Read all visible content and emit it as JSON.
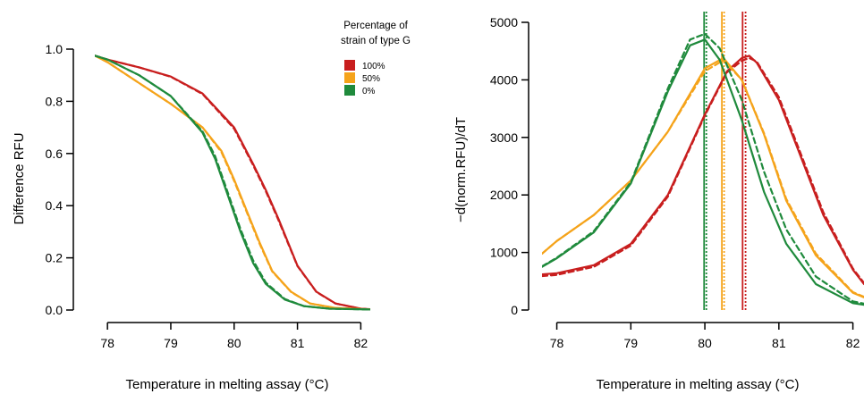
{
  "legend": {
    "title_line1": "Percentage of",
    "title_line2": "strain of type G",
    "items": [
      {
        "label": "100%",
        "color": "#c81e1e"
      },
      {
        "label": "50%",
        "color": "#f5a31a"
      },
      {
        "label": "0%",
        "color": "#1f8a3c"
      }
    ]
  },
  "chart_data": [
    {
      "type": "line",
      "xlabel": "Temperature in melting assay (°C)",
      "ylabel": "Difference RFU",
      "xlim": [
        77.8,
        82.15
      ],
      "ylim": [
        0,
        1.0
      ],
      "xticks": [
        "78",
        "79",
        "80",
        "81",
        "82"
      ],
      "yticks": [
        "0.0",
        "0.2",
        "0.4",
        "0.6",
        "0.8",
        "1.0"
      ],
      "grid": false,
      "series": [
        {
          "name": "100%",
          "color": "#c81e1e",
          "line": "solid",
          "x": [
            77.8,
            78.0,
            78.5,
            79.0,
            79.5,
            80.0,
            80.3,
            80.5,
            80.7,
            81.0,
            81.3,
            81.6,
            82.0,
            82.15
          ],
          "y": [
            0.975,
            0.96,
            0.93,
            0.895,
            0.83,
            0.7,
            0.56,
            0.46,
            0.35,
            0.17,
            0.07,
            0.025,
            0.005,
            0.003
          ]
        },
        {
          "name": "100%",
          "color": "#c81e1e",
          "line": "dashed",
          "x": [
            77.8,
            78.0,
            78.5,
            79.0,
            79.5,
            80.0,
            80.3,
            80.5,
            80.7,
            81.0,
            81.3,
            81.6,
            82.0,
            82.15
          ],
          "y": [
            0.975,
            0.96,
            0.93,
            0.894,
            0.828,
            0.695,
            0.555,
            0.455,
            0.345,
            0.168,
            0.069,
            0.025,
            0.005,
            0.003
          ]
        },
        {
          "name": "50%",
          "color": "#f5a31a",
          "line": "solid",
          "x": [
            77.8,
            78.0,
            78.5,
            79.0,
            79.5,
            79.8,
            80.0,
            80.2,
            80.4,
            80.6,
            80.9,
            81.2,
            81.6,
            82.15
          ],
          "y": [
            0.975,
            0.95,
            0.87,
            0.79,
            0.7,
            0.61,
            0.5,
            0.38,
            0.26,
            0.15,
            0.07,
            0.025,
            0.008,
            0.002
          ]
        },
        {
          "name": "50%",
          "color": "#f5a31a",
          "line": "dashed",
          "x": [
            77.8,
            78.0,
            78.5,
            79.0,
            79.5,
            79.8,
            80.0,
            80.2,
            80.4,
            80.6,
            80.9,
            81.2,
            81.6,
            82.15
          ],
          "y": [
            0.975,
            0.95,
            0.87,
            0.79,
            0.7,
            0.605,
            0.495,
            0.375,
            0.255,
            0.148,
            0.069,
            0.025,
            0.008,
            0.002
          ]
        },
        {
          "name": "0%",
          "color": "#1f8a3c",
          "line": "solid",
          "x": [
            77.8,
            78.0,
            78.5,
            79.0,
            79.5,
            79.7,
            79.9,
            80.1,
            80.3,
            80.5,
            80.8,
            81.1,
            81.5,
            82.15
          ],
          "y": [
            0.975,
            0.96,
            0.9,
            0.82,
            0.68,
            0.58,
            0.44,
            0.3,
            0.18,
            0.1,
            0.04,
            0.015,
            0.005,
            0.002
          ]
        },
        {
          "name": "0%",
          "color": "#1f8a3c",
          "line": "dashed",
          "x": [
            77.8,
            78.0,
            78.5,
            79.0,
            79.5,
            79.7,
            79.9,
            80.1,
            80.3,
            80.5,
            80.8,
            81.1,
            81.5,
            82.15
          ],
          "y": [
            0.975,
            0.96,
            0.9,
            0.82,
            0.685,
            0.59,
            0.45,
            0.31,
            0.19,
            0.105,
            0.042,
            0.015,
            0.005,
            0.002
          ]
        }
      ]
    },
    {
      "type": "line",
      "xlabel": "Temperature in melting assay (°C)",
      "ylabel": "−d(norm.RFU)/dT",
      "xlim": [
        77.8,
        82.15
      ],
      "ylim": [
        0,
        5000
      ],
      "xticks": [
        "78",
        "79",
        "80",
        "81",
        "82"
      ],
      "yticks": [
        "0",
        "1000",
        "2000",
        "3000",
        "4000",
        "5000"
      ],
      "grid": false,
      "series": [
        {
          "name": "100%",
          "color": "#c81e1e",
          "line": "solid",
          "x": [
            77.8,
            78.0,
            78.5,
            79.0,
            79.5,
            80.0,
            80.3,
            80.5,
            80.6,
            80.7,
            81.0,
            81.3,
            81.6,
            82.0,
            82.15
          ],
          "y": [
            620,
            640,
            780,
            1150,
            2000,
            3400,
            4150,
            4380,
            4420,
            4300,
            3650,
            2650,
            1650,
            700,
            450
          ]
        },
        {
          "name": "100%",
          "color": "#c81e1e",
          "line": "dashed",
          "x": [
            77.8,
            78.0,
            78.5,
            79.0,
            79.5,
            80.0,
            80.3,
            80.5,
            80.6,
            80.7,
            81.0,
            81.3,
            81.6,
            82.0,
            82.15
          ],
          "y": [
            590,
            610,
            750,
            1120,
            1970,
            3380,
            4130,
            4330,
            4380,
            4320,
            3700,
            2700,
            1700,
            720,
            470
          ]
        },
        {
          "name": "50%",
          "color": "#f5a31a",
          "line": "solid",
          "x": [
            77.8,
            78.0,
            78.5,
            79.0,
            79.5,
            80.0,
            80.25,
            80.5,
            80.8,
            81.1,
            81.5,
            82.0,
            82.15
          ],
          "y": [
            980,
            1200,
            1650,
            2250,
            3100,
            4200,
            4380,
            4000,
            3050,
            1900,
            950,
            300,
            220
          ]
        },
        {
          "name": "50%",
          "color": "#f5a31a",
          "line": "dashed",
          "x": [
            77.8,
            78.0,
            78.5,
            79.0,
            79.5,
            80.0,
            80.25,
            80.5,
            80.8,
            81.1,
            81.5,
            82.0,
            82.15
          ],
          "y": [
            980,
            1200,
            1650,
            2250,
            3100,
            4150,
            4340,
            4000,
            3070,
            1930,
            980,
            310,
            230
          ]
        },
        {
          "name": "0%",
          "color": "#1f8a3c",
          "line": "solid",
          "x": [
            77.8,
            78.0,
            78.5,
            79.0,
            79.5,
            79.8,
            80.0,
            80.2,
            80.5,
            80.8,
            81.1,
            81.5,
            82.0,
            82.15
          ],
          "y": [
            750,
            900,
            1350,
            2200,
            3800,
            4600,
            4700,
            4350,
            3300,
            2050,
            1150,
            450,
            120,
            90
          ]
        },
        {
          "name": "0%",
          "color": "#1f8a3c",
          "line": "dashed",
          "x": [
            77.8,
            78.0,
            78.5,
            79.0,
            79.5,
            79.8,
            80.0,
            80.2,
            80.5,
            80.8,
            81.1,
            81.5,
            82.0,
            82.15
          ],
          "y": [
            760,
            910,
            1370,
            2220,
            3850,
            4700,
            4800,
            4550,
            3650,
            2400,
            1400,
            580,
            150,
            110
          ]
        }
      ],
      "vlines": [
        {
          "x": 79.99,
          "color": "#1f8a3c",
          "line": "solid"
        },
        {
          "x": 80.02,
          "color": "#1f8a3c",
          "line": "dotted"
        },
        {
          "x": 80.23,
          "color": "#f5a31a",
          "line": "solid"
        },
        {
          "x": 80.26,
          "color": "#f5a31a",
          "line": "dotted"
        },
        {
          "x": 80.51,
          "color": "#c81e1e",
          "line": "solid"
        },
        {
          "x": 80.55,
          "color": "#c81e1e",
          "line": "dotted"
        }
      ]
    }
  ]
}
